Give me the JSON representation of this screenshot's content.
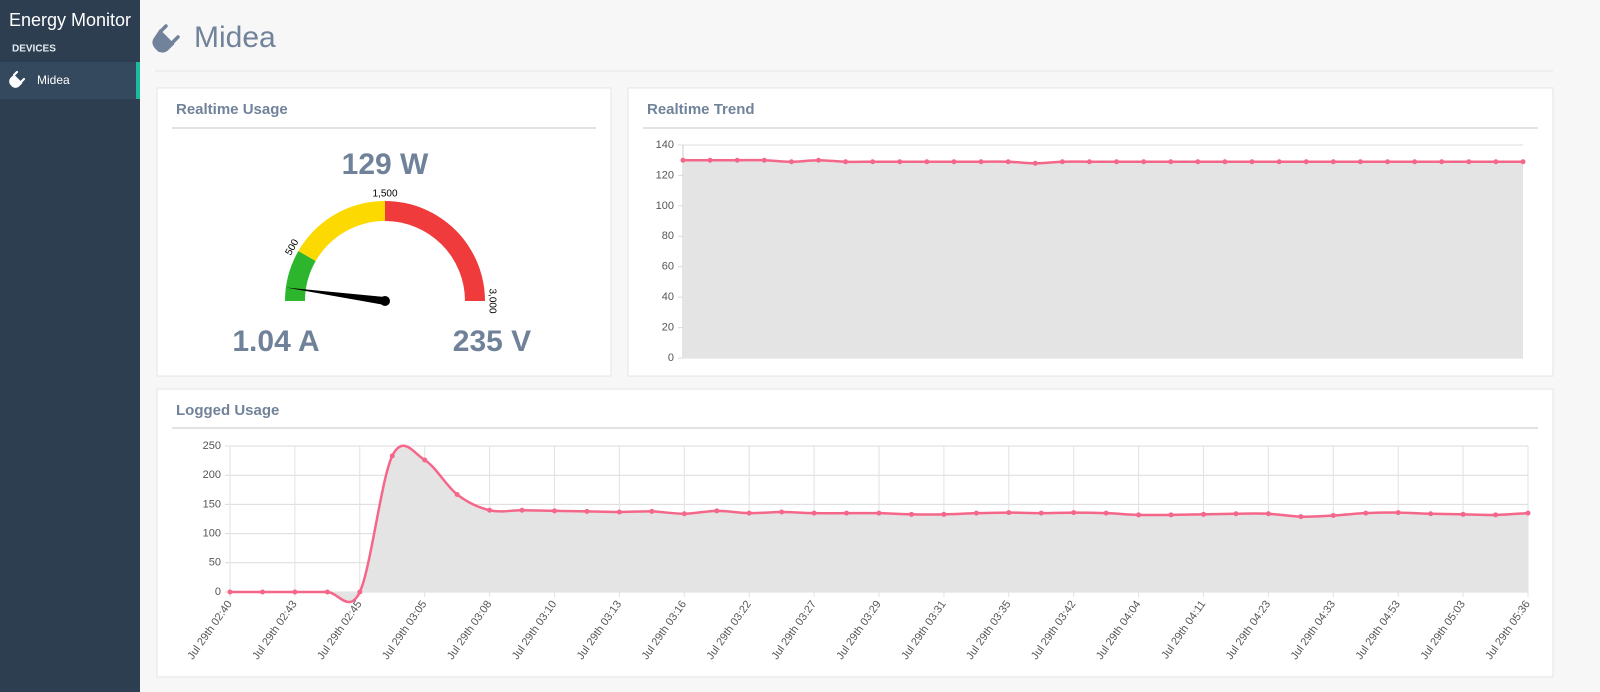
{
  "sidebar": {
    "brand": "Energy Monitor",
    "section": "DEVICES",
    "items": [
      "Midea"
    ]
  },
  "page": {
    "title": "Midea"
  },
  "panels": {
    "realtime_usage": {
      "title": "Realtime Usage"
    },
    "realtime_trend": {
      "title": "Realtime Trend"
    },
    "logged_usage": {
      "title": "Logged Usage"
    }
  },
  "gauge": {
    "type": "gauge",
    "value": 129,
    "value_label": "129 W",
    "current_label": "1.04 A",
    "voltage_label": "235 V",
    "range": [
      0,
      3000
    ],
    "ticks": [
      500,
      {
        "value": 1500,
        "label": "1,500"
      },
      {
        "value": 3000,
        "label": "3,000"
      }
    ],
    "band_colors": [
      "#2db52d",
      "#fcd900",
      "#ef3b3b"
    ],
    "needle_color": "#000000"
  },
  "trend": {
    "type": "line",
    "color": "#f5678a",
    "fill": "#e4e4e4",
    "values": [
      130,
      130,
      130,
      130,
      129,
      130,
      129,
      129,
      129,
      129,
      129,
      129,
      129,
      128,
      129,
      129,
      129,
      129,
      129,
      129,
      129,
      129,
      129,
      129,
      129,
      129,
      129,
      129,
      129,
      129,
      129,
      129
    ],
    "ylim": [
      0,
      140
    ],
    "yticks": [
      0,
      20,
      40,
      60,
      80,
      100,
      120,
      140
    ],
    "grid": true
  },
  "logged": {
    "type": "line",
    "color": "#f5678a",
    "fill": "#e4e4e4",
    "categories": [
      "Jul 29th 02:40",
      null,
      "Jul 29th 02:43",
      null,
      "Jul 29th 02:45",
      null,
      "Jul 29th 03:05",
      null,
      "Jul 29th 03:08",
      null,
      "Jul 29th 03:10",
      null,
      "Jul 29th 03:13",
      null,
      "Jul 29th 03:16",
      null,
      "Jul 29th 03:22",
      null,
      "Jul 29th 03:27",
      null,
      "Jul 29th 03:29",
      null,
      "Jul 29th 03:31",
      null,
      "Jul 29th 03:35",
      null,
      "Jul 29th 03:42",
      null,
      "Jul 29th 04:04",
      null,
      "Jul 29th 04:11",
      null,
      "Jul 29th 04:23",
      null,
      "Jul 29th 04:33",
      null,
      "Jul 29th 04:53",
      null,
      "Jul 29th 05:03",
      null,
      "Jul 29th 05:36"
    ],
    "values": [
      0,
      0,
      0,
      0,
      0,
      233,
      226,
      167,
      140,
      140,
      139,
      138,
      137,
      138,
      134,
      139,
      135,
      137,
      135,
      135,
      135,
      133,
      133,
      135,
      136,
      135,
      136,
      135,
      132,
      132,
      133,
      134,
      134,
      129,
      131,
      135,
      136,
      134,
      133,
      132,
      135
    ],
    "ylim": [
      0,
      250
    ],
    "yticks": [
      0,
      50,
      100,
      150,
      200,
      250
    ],
    "grid": true
  }
}
